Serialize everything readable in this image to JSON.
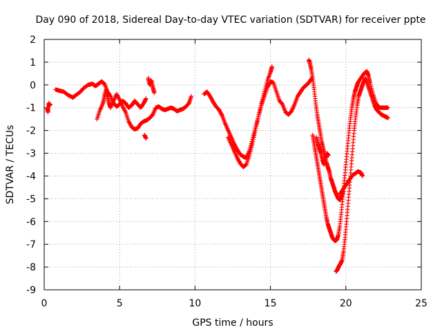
{
  "chart_data": {
    "type": "scatter",
    "title": "Day 090 of 2018, Sidereal Day-to-day VTEC variation (SDTVAR) for receiver ppte",
    "xlabel": "GPS time / hours",
    "ylabel": "SDTVAR / TECUs",
    "xlim": [
      0,
      25
    ],
    "ylim": [
      -9,
      2
    ],
    "x_ticks": [
      0,
      5,
      10,
      15,
      20,
      25
    ],
    "y_ticks": [
      2,
      1,
      0,
      -1,
      -2,
      -3,
      -4,
      -5,
      -6,
      -7,
      -8,
      -9
    ],
    "grid": true,
    "marker": "plus",
    "color": "#ff0000",
    "series": [
      {
        "name": "ppte",
        "segments": [
          [
            [
              0.2,
              -1.0
            ],
            [
              0.25,
              -1.2
            ],
            [
              0.3,
              -0.8
            ],
            [
              0.35,
              -0.9
            ],
            [
              0.4,
              -0.85
            ]
          ],
          [
            [
              0.75,
              -0.2
            ],
            [
              1.0,
              -0.25
            ],
            [
              1.3,
              -0.3
            ],
            [
              1.6,
              -0.45
            ],
            [
              1.9,
              -0.55
            ],
            [
              2.1,
              -0.45
            ],
            [
              2.4,
              -0.3
            ],
            [
              2.6,
              -0.15
            ],
            [
              2.9,
              0.0
            ],
            [
              3.2,
              0.05
            ],
            [
              3.4,
              -0.05
            ],
            [
              3.6,
              0.05
            ],
            [
              3.8,
              0.15
            ],
            [
              4.0,
              0.05
            ],
            [
              4.2,
              -0.3
            ],
            [
              4.4,
              -0.5
            ],
            [
              4.6,
              -0.8
            ],
            [
              4.8,
              -0.95
            ],
            [
              5.0,
              -0.85
            ],
            [
              5.2,
              -0.7
            ],
            [
              5.4,
              -0.8
            ],
            [
              5.6,
              -1.0
            ],
            [
              5.8,
              -0.9
            ],
            [
              6.0,
              -0.7
            ],
            [
              6.2,
              -0.85
            ],
            [
              6.4,
              -1.0
            ],
            [
              6.6,
              -0.8
            ],
            [
              6.75,
              -0.6
            ]
          ],
          [
            [
              3.5,
              -1.5
            ],
            [
              3.7,
              -1.1
            ],
            [
              3.9,
              -0.8
            ],
            [
              4.0,
              -0.5
            ],
            [
              4.1,
              -0.2
            ],
            [
              4.2,
              -0.5
            ],
            [
              4.3,
              -0.8
            ],
            [
              4.4,
              -1.0
            ],
            [
              4.6,
              -0.7
            ],
            [
              4.8,
              -0.4
            ],
            [
              5.0,
              -0.65
            ],
            [
              5.2,
              -0.95
            ],
            [
              5.4,
              -1.2
            ],
            [
              5.6,
              -1.6
            ],
            [
              5.8,
              -1.85
            ],
            [
              6.0,
              -1.95
            ],
            [
              6.2,
              -1.9
            ],
            [
              6.4,
              -1.7
            ],
            [
              6.6,
              -1.6
            ],
            [
              6.8,
              -1.55
            ],
            [
              7.0,
              -1.45
            ],
            [
              7.2,
              -1.3
            ],
            [
              7.4,
              -1.0
            ],
            [
              7.6,
              -0.95
            ],
            [
              7.8,
              -1.05
            ],
            [
              8.0,
              -1.1
            ],
            [
              8.2,
              -1.05
            ],
            [
              8.4,
              -1.0
            ],
            [
              8.6,
              -1.05
            ],
            [
              8.8,
              -1.15
            ],
            [
              9.0,
              -1.1
            ],
            [
              9.2,
              -1.05
            ],
            [
              9.4,
              -0.95
            ],
            [
              9.6,
              -0.8
            ],
            [
              9.75,
              -0.5
            ]
          ],
          [
            [
              6.65,
              -2.2
            ],
            [
              6.75,
              -2.35
            ]
          ],
          [
            [
              6.9,
              0.3
            ],
            [
              7.0,
              0.0
            ],
            [
              7.1,
              0.2
            ],
            [
              7.2,
              -0.1
            ],
            [
              7.3,
              -0.35
            ]
          ],
          [
            [
              10.6,
              -0.4
            ],
            [
              10.8,
              -0.3
            ],
            [
              11.0,
              -0.5
            ],
            [
              11.2,
              -0.75
            ],
            [
              11.4,
              -0.95
            ],
            [
              11.6,
              -1.1
            ],
            [
              11.8,
              -1.35
            ],
            [
              12.0,
              -1.7
            ],
            [
              12.2,
              -2.0
            ],
            [
              12.4,
              -2.3
            ],
            [
              12.6,
              -2.6
            ],
            [
              12.8,
              -2.85
            ],
            [
              13.0,
              -3.05
            ],
            [
              13.2,
              -3.15
            ],
            [
              13.4,
              -3.2
            ],
            [
              13.6,
              -2.9
            ],
            [
              13.8,
              -2.4
            ],
            [
              14.0,
              -1.9
            ],
            [
              14.2,
              -1.4
            ],
            [
              14.4,
              -0.9
            ],
            [
              14.6,
              -0.5
            ],
            [
              14.8,
              -0.1
            ],
            [
              15.0,
              0.15
            ],
            [
              15.2,
              0.1
            ],
            [
              15.4,
              -0.3
            ],
            [
              15.6,
              -0.7
            ],
            [
              15.8,
              -0.85
            ],
            [
              16.0,
              -1.2
            ],
            [
              16.2,
              -1.3
            ],
            [
              16.4,
              -1.15
            ],
            [
              16.6,
              -0.85
            ],
            [
              16.8,
              -0.5
            ],
            [
              17.0,
              -0.3
            ],
            [
              17.2,
              -0.1
            ],
            [
              17.4,
              0.0
            ],
            [
              17.6,
              0.15
            ],
            [
              17.75,
              0.3
            ]
          ],
          [
            [
              12.2,
              -2.3
            ],
            [
              12.4,
              -2.6
            ],
            [
              12.6,
              -2.9
            ],
            [
              12.8,
              -3.2
            ],
            [
              13.0,
              -3.45
            ],
            [
              13.2,
              -3.6
            ],
            [
              13.4,
              -3.5
            ],
            [
              13.6,
              -3.1
            ],
            [
              13.8,
              -2.6
            ],
            [
              14.0,
              -2.0
            ],
            [
              14.2,
              -1.4
            ],
            [
              14.4,
              -0.8
            ],
            [
              14.6,
              -0.3
            ],
            [
              14.8,
              0.2
            ],
            [
              15.0,
              0.55
            ],
            [
              15.1,
              0.8
            ]
          ],
          [
            [
              17.55,
              1.1
            ],
            [
              17.6,
              1.0
            ],
            [
              17.7,
              0.7
            ],
            [
              17.8,
              0.3
            ],
            [
              17.9,
              -0.2
            ],
            [
              18.0,
              -0.8
            ],
            [
              18.1,
              -1.3
            ],
            [
              18.2,
              -1.7
            ],
            [
              18.3,
              -2.1
            ],
            [
              18.4,
              -2.5
            ],
            [
              18.5,
              -2.8
            ],
            [
              18.6,
              -3.1
            ],
            [
              18.7,
              -3.4
            ],
            [
              18.8,
              -3.6
            ],
            [
              18.9,
              -3.8
            ],
            [
              19.0,
              -4.1
            ],
            [
              19.1,
              -4.3
            ],
            [
              19.2,
              -4.5
            ],
            [
              19.3,
              -4.7
            ],
            [
              19.4,
              -4.85
            ],
            [
              19.5,
              -5.0
            ],
            [
              19.6,
              -5.05
            ],
            [
              19.7,
              -4.95
            ],
            [
              19.8,
              -4.7
            ]
          ],
          [
            [
              17.8,
              -2.2
            ],
            [
              17.9,
              -2.6
            ],
            [
              18.0,
              -3.0
            ],
            [
              18.1,
              -3.4
            ],
            [
              18.2,
              -3.8
            ],
            [
              18.3,
              -4.2
            ],
            [
              18.4,
              -4.6
            ],
            [
              18.5,
              -5.0
            ],
            [
              18.6,
              -5.4
            ],
            [
              18.7,
              -5.8
            ],
            [
              18.8,
              -6.1
            ],
            [
              18.9,
              -6.3
            ],
            [
              19.0,
              -6.5
            ],
            [
              19.1,
              -6.7
            ],
            [
              19.2,
              -6.8
            ],
            [
              19.3,
              -6.85
            ],
            [
              19.4,
              -6.8
            ],
            [
              19.5,
              -6.6
            ],
            [
              19.6,
              -6.2
            ],
            [
              19.7,
              -5.6
            ],
            [
              19.8,
              -4.9
            ],
            [
              19.9,
              -4.2
            ],
            [
              20.0,
              -3.5
            ],
            [
              20.1,
              -2.8
            ],
            [
              20.2,
              -2.1
            ],
            [
              20.3,
              -1.5
            ],
            [
              20.4,
              -1.0
            ],
            [
              20.5,
              -0.6
            ],
            [
              20.6,
              -0.3
            ],
            [
              20.7,
              -0.1
            ],
            [
              20.8,
              0.1
            ],
            [
              21.0,
              0.3
            ],
            [
              21.2,
              0.5
            ],
            [
              21.4,
              0.6
            ],
            [
              21.5,
              0.4
            ],
            [
              21.6,
              0.1
            ],
            [
              21.8,
              -0.4
            ],
            [
              22.0,
              -0.8
            ],
            [
              22.2,
              -1.0
            ],
            [
              22.4,
              -1.0
            ],
            [
              22.6,
              -1.0
            ],
            [
              22.8,
              -1.0
            ]
          ],
          [
            [
              19.35,
              -8.2
            ],
            [
              19.45,
              -8.1
            ],
            [
              19.55,
              -7.95
            ],
            [
              19.65,
              -7.85
            ],
            [
              19.75,
              -7.7
            ],
            [
              19.85,
              -7.3
            ],
            [
              19.95,
              -6.7
            ],
            [
              20.05,
              -6.0
            ],
            [
              20.15,
              -5.2
            ],
            [
              20.25,
              -4.4
            ],
            [
              20.35,
              -3.6
            ],
            [
              20.45,
              -2.8
            ],
            [
              20.55,
              -2.0
            ],
            [
              20.65,
              -1.4
            ],
            [
              20.75,
              -0.9
            ],
            [
              20.85,
              -0.5
            ],
            [
              20.95,
              -0.3
            ],
            [
              21.05,
              -0.1
            ],
            [
              21.15,
              0.1
            ],
            [
              21.3,
              0.3
            ],
            [
              21.45,
              0.0
            ],
            [
              21.6,
              -0.3
            ],
            [
              21.75,
              -0.6
            ],
            [
              21.9,
              -0.9
            ],
            [
              22.05,
              -1.1
            ],
            [
              22.2,
              -1.2
            ],
            [
              22.35,
              -1.3
            ],
            [
              22.5,
              -1.35
            ],
            [
              22.65,
              -1.4
            ],
            [
              22.8,
              -1.45
            ]
          ],
          [
            [
              19.6,
              -4.8
            ],
            [
              19.8,
              -4.6
            ],
            [
              20.0,
              -4.4
            ],
            [
              20.2,
              -4.2
            ],
            [
              20.4,
              -4.0
            ],
            [
              20.6,
              -3.9
            ],
            [
              20.8,
              -3.8
            ],
            [
              21.0,
              -3.85
            ],
            [
              21.1,
              -4.0
            ]
          ],
          [
            [
              18.05,
              -2.3
            ],
            [
              18.15,
              -2.6
            ],
            [
              18.25,
              -2.8
            ],
            [
              18.35,
              -3.0
            ],
            [
              18.45,
              -3.3
            ],
            [
              18.55,
              -3.5
            ],
            [
              18.65,
              -3.2
            ],
            [
              18.75,
              -3.0
            ],
            [
              18.85,
              -3.1
            ]
          ]
        ]
      }
    ]
  }
}
